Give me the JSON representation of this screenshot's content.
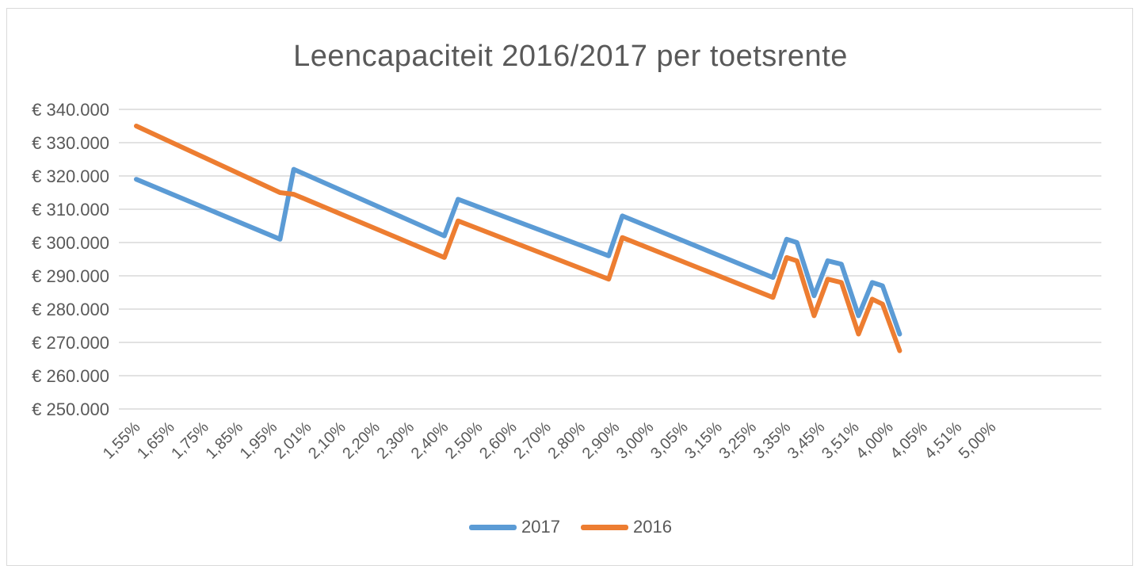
{
  "chart_data": {
    "type": "line",
    "title": "Leencapaciteit 2016/2017 per toetsrente",
    "xlabel": "",
    "ylabel": "",
    "ylim": [
      250000,
      340000
    ],
    "y_ticks": [
      {
        "value": 340000,
        "label": "€ 340.000"
      },
      {
        "value": 330000,
        "label": "€ 330.000"
      },
      {
        "value": 320000,
        "label": "€ 320.000"
      },
      {
        "value": 310000,
        "label": "€ 310.000"
      },
      {
        "value": 300000,
        "label": "€ 300.000"
      },
      {
        "value": 290000,
        "label": "€ 290.000"
      },
      {
        "value": 280000,
        "label": "€ 280.000"
      },
      {
        "value": 270000,
        "label": "€ 270.000"
      },
      {
        "value": 260000,
        "label": "€ 260.000"
      },
      {
        "value": 250000,
        "label": "€ 250.000"
      }
    ],
    "x_ticks": [
      "1,55%",
      "1,65%",
      "1,75%",
      "1,85%",
      "1,95%",
      "2,01%",
      "2,10%",
      "2,20%",
      "2,30%",
      "2,40%",
      "2,50%",
      "2,60%",
      "2,70%",
      "2,80%",
      "2,90%",
      "3,00%",
      "3,05%",
      "3,15%",
      "3,25%",
      "3,35%",
      "3,45%",
      "3,51%",
      "4,00%",
      "4,05%",
      "4,51%",
      "5,00%"
    ],
    "grid": true,
    "legend_position": "bottom",
    "series": [
      {
        "name": "2017",
        "color": "#5b9bd5",
        "points": [
          [
            0,
            319000
          ],
          [
            4.2,
            301000
          ],
          [
            4.6,
            322000
          ],
          [
            9.0,
            302000
          ],
          [
            9.4,
            313000
          ],
          [
            13.8,
            296000
          ],
          [
            14.2,
            308000
          ],
          [
            18.6,
            289500
          ],
          [
            19.0,
            301000
          ],
          [
            19.3,
            300000
          ],
          [
            19.8,
            284000
          ],
          [
            20.2,
            294500
          ],
          [
            20.6,
            293500
          ],
          [
            21.1,
            278000
          ],
          [
            21.5,
            288000
          ],
          [
            21.8,
            287000
          ],
          [
            22.3,
            272500
          ]
        ]
      },
      {
        "name": "2016",
        "color": "#ed7d31",
        "points": [
          [
            0,
            335000
          ],
          [
            4.2,
            315000
          ],
          [
            4.6,
            314500
          ],
          [
            9.0,
            295500
          ],
          [
            9.4,
            306500
          ],
          [
            13.8,
            289000
          ],
          [
            14.2,
            301500
          ],
          [
            18.6,
            283500
          ],
          [
            19.0,
            295500
          ],
          [
            19.3,
            294500
          ],
          [
            19.8,
            278000
          ],
          [
            20.2,
            289000
          ],
          [
            20.6,
            288000
          ],
          [
            21.1,
            272500
          ],
          [
            21.5,
            283000
          ],
          [
            21.8,
            281500
          ],
          [
            22.3,
            267500
          ]
        ]
      }
    ]
  },
  "legend": {
    "item1": "2017",
    "item2": "2016"
  }
}
